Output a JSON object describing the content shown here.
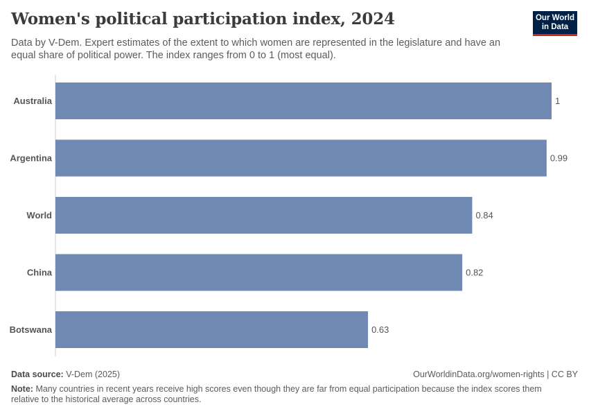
{
  "header": {
    "title": "Women's political participation index, 2024",
    "subtitle": "Data by V-Dem. Expert estimates of the extent to which women are represented in the legislature and have an equal share of political power. The index ranges from 0 to 1 (most equal)."
  },
  "logo": {
    "line1": "Our World",
    "line2": "in Data"
  },
  "chart_data": {
    "type": "bar",
    "orientation": "horizontal",
    "categories": [
      "Australia",
      "Argentina",
      "World",
      "China",
      "Botswana"
    ],
    "values": [
      1,
      0.99,
      0.84,
      0.82,
      0.63
    ],
    "value_labels": [
      "1",
      "0.99",
      "0.84",
      "0.82",
      "0.63"
    ],
    "xlim": [
      0,
      1
    ],
    "bar_color": "#6f89b2",
    "grid": false
  },
  "footer": {
    "source_label": "Data source:",
    "source_value": "V-Dem (2025)",
    "url": "OurWorldinData.org/women-rights | CC BY",
    "note_label": "Note:",
    "note_text": "Many countries in recent years receive high scores even though they are far from equal participation because the index scores them relative to the historical average across countries."
  }
}
